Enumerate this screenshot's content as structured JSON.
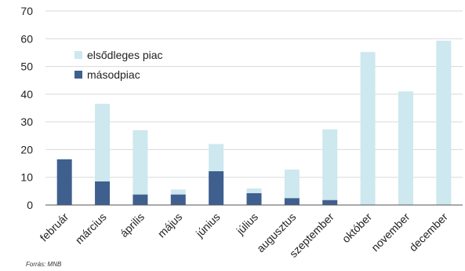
{
  "chart_data": {
    "type": "bar",
    "stacked": true,
    "categories": [
      "február",
      "március",
      "április",
      "május",
      "június",
      "július",
      "augusztus",
      "szeptember",
      "október",
      "november",
      "december"
    ],
    "series": [
      {
        "name": "másodpiac",
        "color": "#3f5f8f",
        "values": [
          16.5,
          8.5,
          3.8,
          3.8,
          12.2,
          4.3,
          2.5,
          1.8,
          0,
          0,
          0
        ]
      },
      {
        "name": "elsődleges piac",
        "color": "#cde8ee",
        "values": [
          0,
          28,
          23.2,
          1.8,
          9.8,
          1.7,
          10.3,
          25.5,
          55.2,
          41,
          59.3
        ]
      }
    ],
    "legend_order": [
      "elsődleges piac",
      "másodpiac"
    ],
    "legend_position": "top-left",
    "ylim": [
      0,
      70
    ],
    "yticks": [
      "0",
      "10",
      "20",
      "30",
      "40",
      "50",
      "60",
      "70"
    ],
    "gridlines": true,
    "source": "Forrás: MNB"
  }
}
